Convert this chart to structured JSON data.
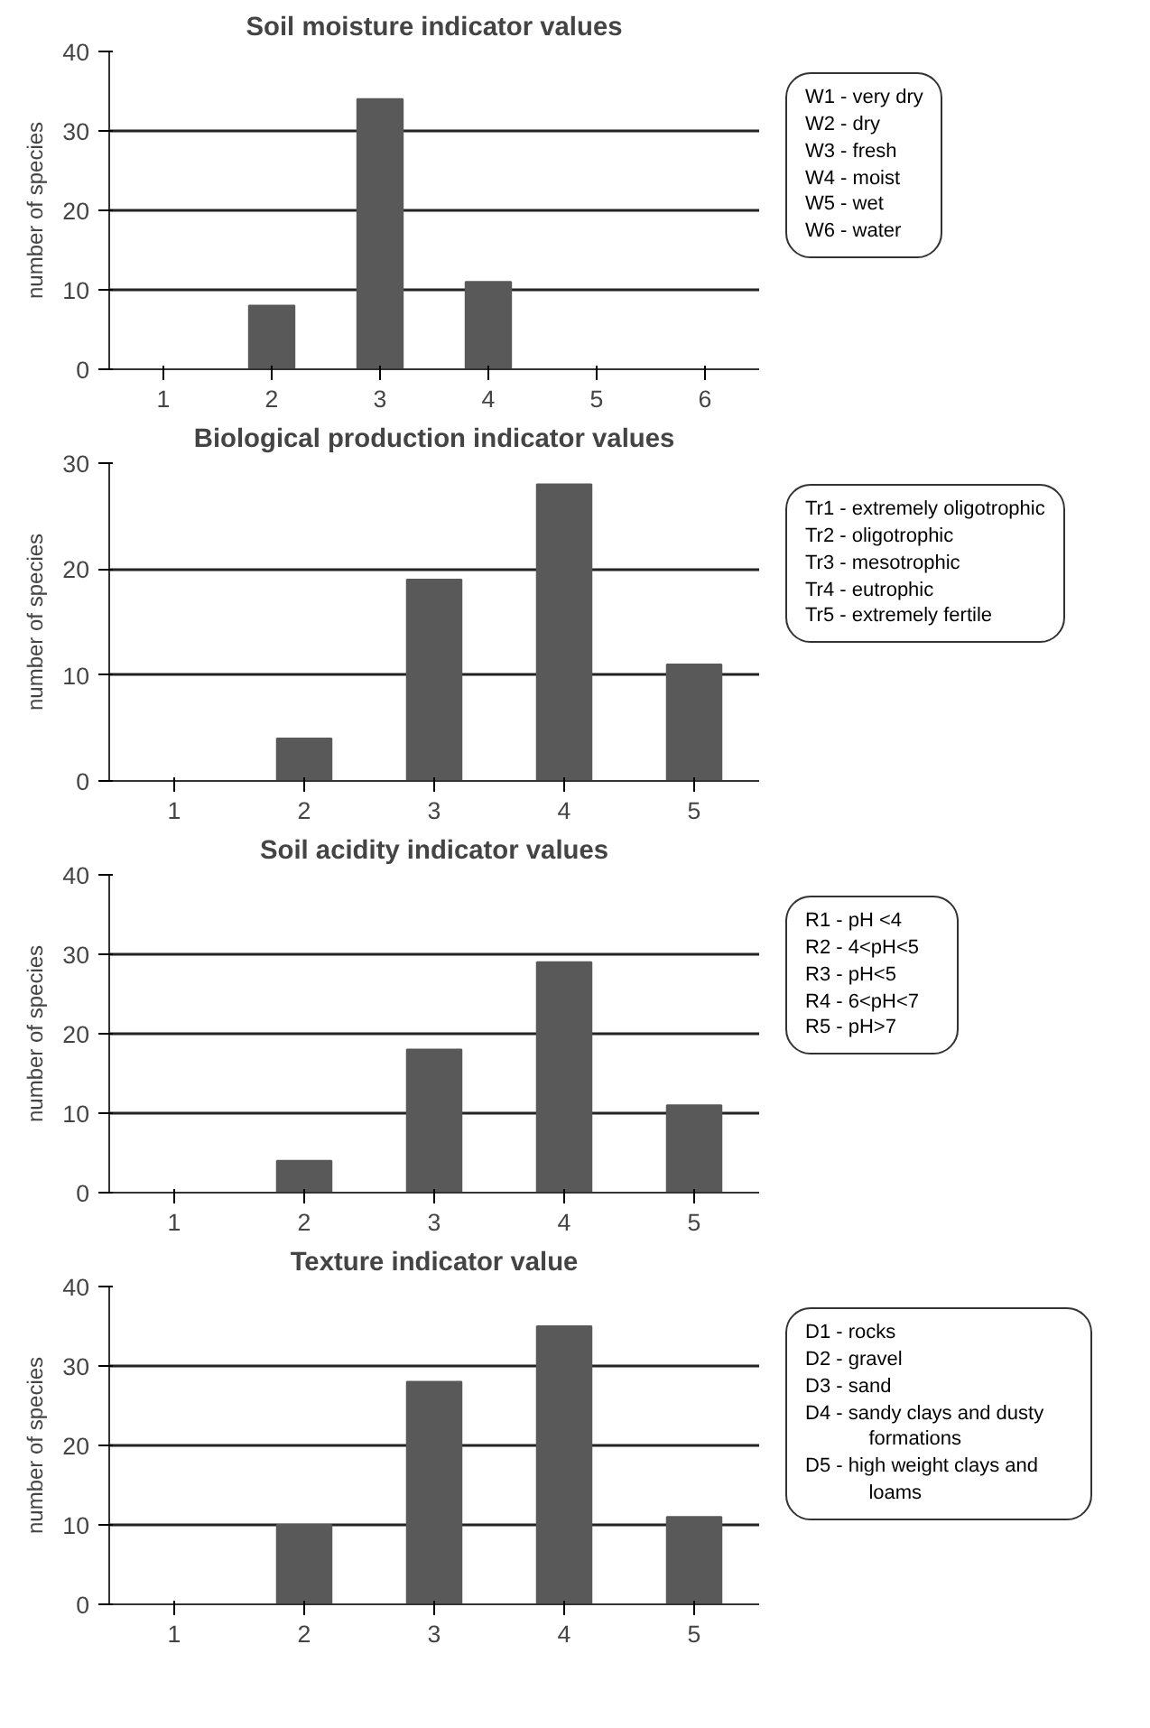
{
  "chart_data": [
    {
      "type": "bar",
      "title": "Soil moisture indicator values",
      "ylabel": "number of species",
      "categories": [
        "1",
        "2",
        "3",
        "4",
        "5",
        "6"
      ],
      "values": [
        0,
        8,
        34,
        11,
        0,
        0
      ],
      "color": "#595959",
      "ylim": [
        0,
        40
      ],
      "yticks": [
        0,
        10,
        20,
        30,
        40
      ],
      "grid": "y",
      "annotations": [
        "W1 - very dry",
        "W2 - dry",
        "W3 - fresh",
        "W4 - moist",
        "W5 - wet",
        "W6 - water"
      ]
    },
    {
      "type": "bar",
      "title": "Biological production indicator values",
      "ylabel": "number of species",
      "categories": [
        "1",
        "2",
        "3",
        "4",
        "5"
      ],
      "values": [
        0,
        4,
        19,
        28,
        11
      ],
      "color": "#595959",
      "ylim": [
        0,
        30
      ],
      "yticks": [
        0,
        10,
        20,
        30
      ],
      "grid": "y",
      "annotations": [
        "Tr1 - extremely oligotrophic",
        "Tr2 - oligotrophic",
        "Tr3 - mesotrophic",
        "Tr4 - eutrophic",
        "Tr5 - extremely fertile"
      ]
    },
    {
      "type": "bar",
      "title": "Soil acidity indicator values",
      "ylabel": "number of species",
      "categories": [
        "1",
        "2",
        "3",
        "4",
        "5"
      ],
      "values": [
        0,
        4,
        18,
        29,
        11
      ],
      "color": "#595959",
      "ylim": [
        0,
        40
      ],
      "yticks": [
        0,
        10,
        20,
        30,
        40
      ],
      "grid": "y",
      "annotations": [
        "R1 - pH <4",
        "R2 - 4<pH<5",
        "R3 - pH<5",
        "R4 - 6<pH<7",
        "R5 - pH>7"
      ]
    },
    {
      "type": "bar",
      "title": "Texture indicator value",
      "ylabel": "number of species",
      "categories": [
        "1",
        "2",
        "3",
        "4",
        "5"
      ],
      "values": [
        0,
        10,
        28,
        35,
        11
      ],
      "color": "#595959",
      "ylim": [
        0,
        40
      ],
      "yticks": [
        0,
        10,
        20,
        30,
        40
      ],
      "grid": "y",
      "annotations": [
        "D1 - rocks",
        "D2 - gravel",
        "D3 - sand",
        "D4 - sandy clays and dusty formations",
        "D5 - high weight clays and loams"
      ]
    }
  ]
}
